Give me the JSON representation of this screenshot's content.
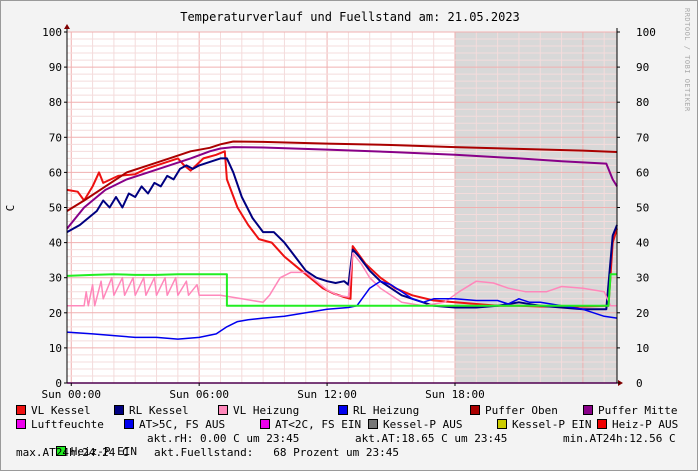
{
  "chart_data": {
    "type": "line",
    "title": "Temperaturverlauf und Fuellstand am: 21.05.2023",
    "side_label": "RRDTOOL / TOBI OETIKER",
    "ylabel": "C",
    "ylim": [
      0,
      100
    ],
    "yticks": [
      "0",
      "10",
      "20",
      "30",
      "40",
      "50",
      "60",
      "70",
      "80",
      "90",
      "100"
    ],
    "xlim": [
      -0.2,
      25.6
    ],
    "xticks": [
      {
        "x": 0,
        "label": "Sun 00:00"
      },
      {
        "x": 6,
        "label": "Sun 06:00"
      },
      {
        "x": 12,
        "label": "Sun 12:00"
      },
      {
        "x": 18,
        "label": "Sun 18:00"
      }
    ],
    "shaded": [
      18.0,
      25.6
    ],
    "series": [
      {
        "name": "VL Kessel",
        "color": "#ee1111",
        "width": 2,
        "points": [
          [
            -0.2,
            55
          ],
          [
            0.3,
            54.5
          ],
          [
            0.6,
            52
          ],
          [
            1.0,
            56
          ],
          [
            1.3,
            60
          ],
          [
            1.5,
            57
          ],
          [
            2.2,
            59
          ],
          [
            3,
            59.5
          ],
          [
            3.5,
            61
          ],
          [
            4,
            62
          ],
          [
            4.5,
            63
          ],
          [
            5,
            64
          ],
          [
            5.3,
            62
          ],
          [
            5.6,
            60.5
          ],
          [
            6.2,
            64
          ],
          [
            6.8,
            65
          ],
          [
            7.2,
            66
          ],
          [
            7.3,
            58
          ],
          [
            7.8,
            50
          ],
          [
            8.3,
            45
          ],
          [
            8.8,
            41
          ],
          [
            9.4,
            40
          ],
          [
            10,
            36
          ],
          [
            10.6,
            33
          ],
          [
            11.2,
            30
          ],
          [
            11.8,
            27
          ],
          [
            12.3,
            25.5
          ],
          [
            12.8,
            24.5
          ],
          [
            13.1,
            24
          ],
          [
            13.2,
            39
          ],
          [
            13.8,
            34
          ],
          [
            14.5,
            30
          ],
          [
            15.2,
            27
          ],
          [
            16,
            25
          ],
          [
            17,
            23.5
          ],
          [
            18,
            23
          ],
          [
            19,
            22.5
          ],
          [
            20,
            22
          ],
          [
            21,
            22
          ],
          [
            22,
            21.8
          ],
          [
            23,
            21.8
          ],
          [
            24,
            21.8
          ],
          [
            25.2,
            22
          ],
          [
            25.4,
            40
          ],
          [
            25.6,
            44
          ]
        ]
      },
      {
        "name": "RL Kessel",
        "color": "#000080",
        "width": 2,
        "points": [
          [
            -0.2,
            43
          ],
          [
            0.4,
            45
          ],
          [
            0.8,
            47
          ],
          [
            1.2,
            49
          ],
          [
            1.5,
            52
          ],
          [
            1.8,
            50
          ],
          [
            2.1,
            53
          ],
          [
            2.4,
            50
          ],
          [
            2.7,
            54
          ],
          [
            3,
            53
          ],
          [
            3.3,
            56
          ],
          [
            3.6,
            54
          ],
          [
            3.9,
            57
          ],
          [
            4.2,
            56
          ],
          [
            4.5,
            59
          ],
          [
            4.8,
            58
          ],
          [
            5.1,
            61
          ],
          [
            5.4,
            62
          ],
          [
            5.7,
            61
          ],
          [
            6,
            62
          ],
          [
            6.5,
            63
          ],
          [
            7,
            64
          ],
          [
            7.3,
            64
          ],
          [
            7.6,
            60
          ],
          [
            8,
            53
          ],
          [
            8.5,
            47
          ],
          [
            9,
            43
          ],
          [
            9.5,
            43
          ],
          [
            10,
            40
          ],
          [
            10.5,
            36
          ],
          [
            11,
            32
          ],
          [
            11.5,
            30
          ],
          [
            12,
            29
          ],
          [
            12.4,
            28.5
          ],
          [
            12.8,
            29
          ],
          [
            13,
            28
          ],
          [
            13.2,
            38
          ],
          [
            13.5,
            36
          ],
          [
            14,
            32
          ],
          [
            14.5,
            29
          ],
          [
            15,
            27
          ],
          [
            15.5,
            25
          ],
          [
            16,
            24
          ],
          [
            17,
            22
          ],
          [
            18,
            21.5
          ],
          [
            19,
            21.5
          ],
          [
            20,
            22
          ],
          [
            21,
            23
          ],
          [
            22,
            22
          ],
          [
            23,
            21.5
          ],
          [
            24,
            21
          ],
          [
            25.1,
            21
          ],
          [
            25.4,
            42
          ],
          [
            25.6,
            45
          ]
        ]
      },
      {
        "name": "VL Heizung",
        "color": "#ff88bb",
        "width": 1.5,
        "points": [
          [
            -0.2,
            22
          ],
          [
            0.6,
            22
          ],
          [
            0.7,
            26
          ],
          [
            0.8,
            22
          ],
          [
            1.0,
            28
          ],
          [
            1.1,
            22
          ],
          [
            1.4,
            29
          ],
          [
            1.5,
            24
          ],
          [
            1.9,
            30
          ],
          [
            2.0,
            25
          ],
          [
            2.4,
            30
          ],
          [
            2.5,
            25
          ],
          [
            2.9,
            30
          ],
          [
            3.0,
            25
          ],
          [
            3.4,
            30
          ],
          [
            3.5,
            25
          ],
          [
            3.9,
            30
          ],
          [
            4.0,
            25
          ],
          [
            4.4,
            30
          ],
          [
            4.5,
            25
          ],
          [
            4.9,
            30
          ],
          [
            5.0,
            25
          ],
          [
            5.4,
            29
          ],
          [
            5.5,
            25
          ],
          [
            5.9,
            28
          ],
          [
            6.0,
            25
          ],
          [
            7,
            25
          ],
          [
            8,
            24
          ],
          [
            9,
            23
          ],
          [
            9.3,
            25
          ],
          [
            9.8,
            30
          ],
          [
            10.3,
            31.5
          ],
          [
            11,
            31.5
          ],
          [
            11.5,
            29
          ],
          [
            12,
            26.5
          ],
          [
            12.5,
            25
          ],
          [
            13,
            24.5
          ],
          [
            13.2,
            37
          ],
          [
            13.6,
            34
          ],
          [
            14,
            30
          ],
          [
            14.5,
            27
          ],
          [
            15,
            25
          ],
          [
            15.5,
            23
          ],
          [
            16.5,
            22
          ],
          [
            17.5,
            23
          ],
          [
            18.2,
            26
          ],
          [
            19,
            29
          ],
          [
            19.8,
            28.5
          ],
          [
            20.5,
            27
          ],
          [
            21.3,
            26
          ],
          [
            22.3,
            26
          ],
          [
            23,
            27.5
          ],
          [
            24,
            27
          ],
          [
            25,
            26
          ],
          [
            25.3,
            22
          ],
          [
            25.6,
            22
          ]
        ]
      },
      {
        "name": "RL Heizung",
        "color": "#0000ee",
        "width": 1.5,
        "points": [
          [
            -0.2,
            14.5
          ],
          [
            1,
            14
          ],
          [
            2,
            13.5
          ],
          [
            3,
            13
          ],
          [
            4,
            13
          ],
          [
            5,
            12.5
          ],
          [
            6,
            13
          ],
          [
            6.8,
            14
          ],
          [
            7.3,
            16
          ],
          [
            7.8,
            17.5
          ],
          [
            8.3,
            18
          ],
          [
            9,
            18.5
          ],
          [
            10,
            19
          ],
          [
            11,
            20
          ],
          [
            12,
            21
          ],
          [
            13,
            21.5
          ],
          [
            13.4,
            22
          ],
          [
            14,
            27
          ],
          [
            14.5,
            29
          ],
          [
            15,
            28
          ],
          [
            15.5,
            26
          ],
          [
            16,
            24
          ],
          [
            16.5,
            23
          ],
          [
            17,
            24
          ],
          [
            18,
            24
          ],
          [
            19,
            23.5
          ],
          [
            20,
            23.5
          ],
          [
            20.5,
            22.5
          ],
          [
            21,
            24
          ],
          [
            21.5,
            23
          ],
          [
            22,
            23
          ],
          [
            23,
            22
          ],
          [
            24,
            21
          ],
          [
            25,
            19
          ],
          [
            25.6,
            18.5
          ]
        ]
      },
      {
        "name": "Puffer Oben",
        "color": "#aa0000",
        "width": 2,
        "points": [
          [
            -0.2,
            49
          ],
          [
            0.6,
            52
          ],
          [
            1.6,
            56
          ],
          [
            2.6,
            60
          ],
          [
            3.6,
            62
          ],
          [
            4.6,
            64
          ],
          [
            5.6,
            66
          ],
          [
            6.5,
            67
          ],
          [
            7.0,
            68
          ],
          [
            7.6,
            68.8
          ],
          [
            9,
            68.7
          ],
          [
            12,
            68.2
          ],
          [
            15,
            67.8
          ],
          [
            18,
            67.2
          ],
          [
            21,
            66.7
          ],
          [
            24,
            66.2
          ],
          [
            25.6,
            65.8
          ]
        ]
      },
      {
        "name": "Puffer Mitte",
        "color": "#880088",
        "width": 2,
        "points": [
          [
            -0.2,
            44
          ],
          [
            0.6,
            50
          ],
          [
            1.6,
            55
          ],
          [
            2.6,
            58
          ],
          [
            3.6,
            60
          ],
          [
            4.6,
            62
          ],
          [
            5.6,
            64
          ],
          [
            6.5,
            66
          ],
          [
            7.0,
            66.8
          ],
          [
            7.6,
            67.2
          ],
          [
            9,
            67.1
          ],
          [
            12,
            66.5
          ],
          [
            15,
            65.8
          ],
          [
            18,
            65
          ],
          [
            21,
            64
          ],
          [
            23,
            63.2
          ],
          [
            24.2,
            62.8
          ],
          [
            25.1,
            62.5
          ],
          [
            25.4,
            58
          ],
          [
            25.6,
            56
          ]
        ]
      },
      {
        "name": "Luftfeuchte",
        "color": "#ee00ee",
        "width": 1.5,
        "points": [
          [
            -0.2,
            0
          ],
          [
            25.6,
            0
          ]
        ]
      },
      {
        "name": "Heiz-P EIN",
        "color": "#22ee22",
        "width": 2,
        "points": [
          [
            -0.2,
            30.5
          ],
          [
            1,
            30.8
          ],
          [
            2,
            31
          ],
          [
            3,
            30.8
          ],
          [
            4,
            30.8
          ],
          [
            5,
            31
          ],
          [
            6,
            31
          ],
          [
            7.3,
            31
          ],
          [
            7.3,
            22
          ],
          [
            9,
            22
          ],
          [
            12,
            22
          ],
          [
            15,
            22
          ],
          [
            18,
            22
          ],
          [
            21,
            22
          ],
          [
            24,
            22
          ],
          [
            25.2,
            22
          ],
          [
            25.3,
            31
          ],
          [
            25.6,
            31
          ]
        ]
      }
    ],
    "legend": [
      {
        "label": "VL Kessel",
        "color": "#ee1111"
      },
      {
        "label": "RL Kessel",
        "color": "#000080"
      },
      {
        "label": "VL Heizung",
        "color": "#ff88bb"
      },
      {
        "label": "RL Heizung",
        "color": "#0000ee"
      },
      {
        "label": "Puffer Oben",
        "color": "#aa0000"
      },
      {
        "label": "Puffer Mitte",
        "color": "#880088"
      },
      {
        "label": "Luftfeuchte",
        "color": "#ee00ee"
      },
      {
        "label": "AT>5C, FS AUS",
        "color": "#0000ee"
      },
      {
        "label": "AT<2C, FS EIN",
        "color": "#ee00ee"
      },
      {
        "label": "Kessel-P AUS",
        "color": "#777777"
      },
      {
        "label": "Kessel-P EIN",
        "color": "#cccc00"
      },
      {
        "label": "Heiz-P AUS",
        "color": "#ee0000"
      },
      {
        "label": "Heiz-P EIN",
        "color": "#22ee22"
      }
    ],
    "info": {
      "rh": "akt.rH: 0.00 C um 23:45",
      "at": "akt.AT:18.65 C um 23:45",
      "min": "min.AT24h:12.56 C",
      "max": "max.AT24h:24.24 C",
      "fuellstand": "akt.Fuellstand:   68 Prozent um 23:45"
    }
  }
}
